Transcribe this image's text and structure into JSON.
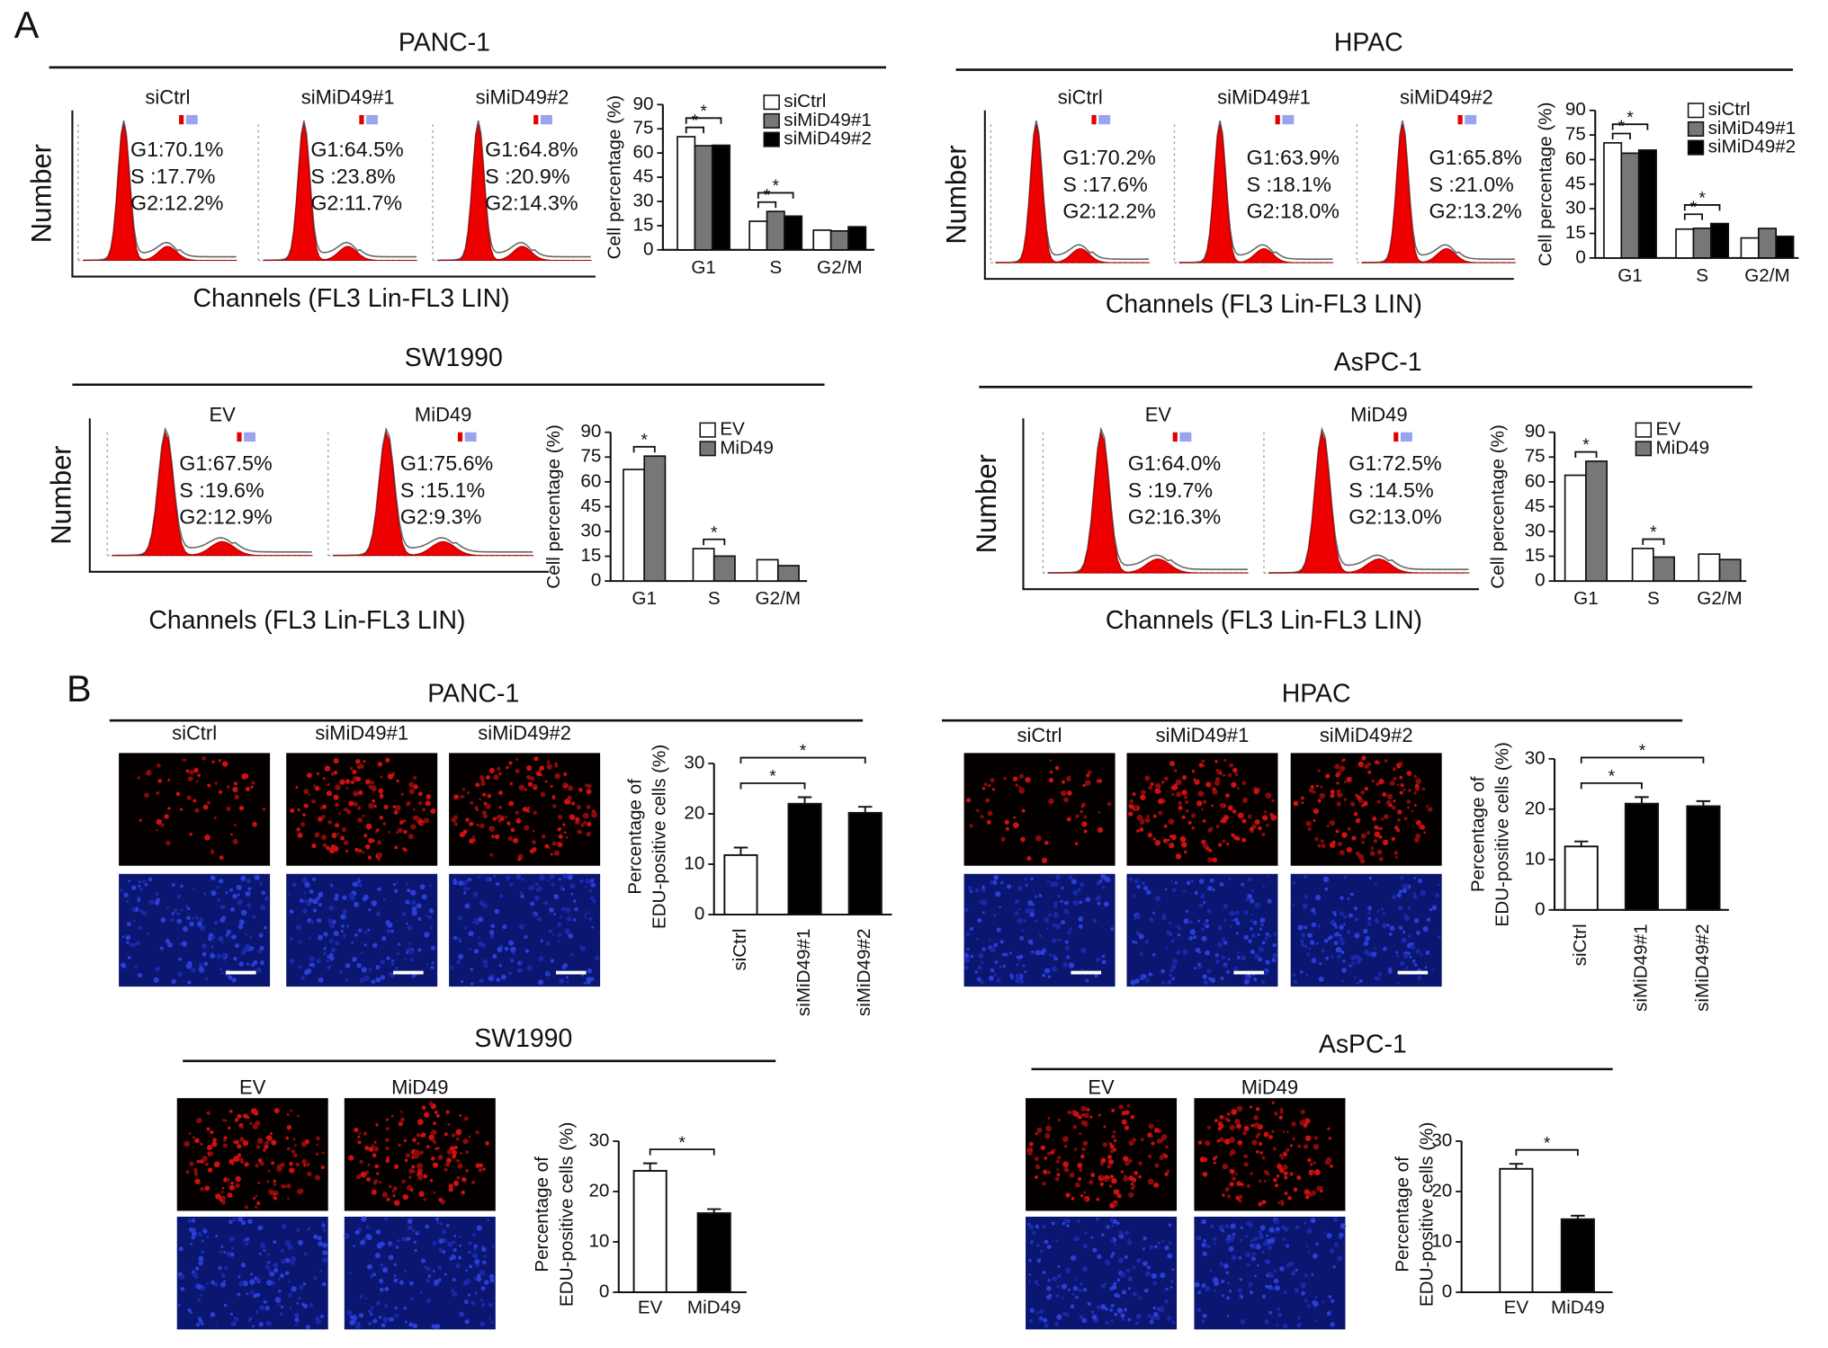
{
  "panel_labels": [
    "A",
    "B"
  ],
  "flow_panels": [
    {
      "title": "PANC-1",
      "y_label": "Number",
      "x_label": "Channels (FL3 Lin-FL3 LIN)",
      "samples": [
        {
          "name": "siCtrl",
          "stats": [
            "G1:70.1%",
            "S :17.7%",
            "G2:12.2%"
          ]
        },
        {
          "name": "siMiD49#1",
          "stats": [
            "G1:64.5%",
            "S :23.8%",
            "G2:11.7%"
          ]
        },
        {
          "name": "siMiD49#2",
          "stats": [
            "G1:64.8%",
            "S :20.9%",
            "G2:14.3%"
          ]
        }
      ]
    },
    {
      "title": "HPAC",
      "y_label": "Number",
      "x_label": "Channels (FL3 Lin-FL3 LIN)",
      "samples": [
        {
          "name": "siCtrl",
          "stats": [
            "G1:70.2%",
            "S :17.6%",
            "G2:12.2%"
          ]
        },
        {
          "name": "siMiD49#1",
          "stats": [
            "G1:63.9%",
            "S :18.1%",
            "G2:18.0%"
          ]
        },
        {
          "name": "siMiD49#2",
          "stats": [
            "G1:65.8%",
            "S :21.0%",
            "G2:13.2%"
          ]
        }
      ]
    },
    {
      "title": "SW1990",
      "y_label": "Number",
      "x_label": "Channels (FL3 Lin-FL3 LIN)",
      "samples": [
        {
          "name": "EV",
          "stats": [
            "G1:67.5%",
            "S :19.6%",
            "G2:12.9%"
          ]
        },
        {
          "name": "MiD49",
          "stats": [
            "G1:75.6%",
            "S :15.1%",
            "G2:9.3%"
          ]
        }
      ]
    },
    {
      "title": "AsPC-1",
      "y_label": "Number",
      "x_label": "Channels (FL3 Lin-FL3 LIN)",
      "samples": [
        {
          "name": "EV",
          "stats": [
            "G1:64.0%",
            "S :19.7%",
            "G2:16.3%"
          ]
        },
        {
          "name": "MiD49",
          "stats": [
            "G1:72.5%",
            "S :14.5%",
            "G2:13.0%"
          ]
        }
      ]
    }
  ],
  "edu_panels": [
    {
      "title": "PANC-1",
      "images": [
        "siCtrl",
        "siMiD49#1",
        "siMiD49#2"
      ]
    },
    {
      "title": "HPAC",
      "images": [
        "siCtrl",
        "siMiD49#1",
        "siMiD49#2"
      ]
    },
    {
      "title": "SW1990",
      "images": [
        "EV",
        "MiD49"
      ]
    },
    {
      "title": "AsPC-1",
      "images": [
        "EV",
        "MiD49"
      ]
    }
  ],
  "chart_data": [
    {
      "type": "bar",
      "ylabel": "Cell percentage (%)",
      "categories": [
        "G1",
        "S",
        "G2/M"
      ],
      "series": [
        {
          "name": "siCtrl",
          "color": "#ffffff",
          "values": [
            70.1,
            17.7,
            12.2
          ]
        },
        {
          "name": "siMiD49#1",
          "color": "#777777",
          "values": [
            64.5,
            23.8,
            11.7
          ]
        },
        {
          "name": "siMiD49#2",
          "color": "#000000",
          "values": [
            64.8,
            20.9,
            14.3
          ]
        }
      ],
      "ylim": [
        0,
        90
      ],
      "yticks": [
        0,
        15,
        30,
        45,
        60,
        75,
        90
      ],
      "annotations": [
        "*",
        "*",
        "*",
        "*"
      ]
    },
    {
      "type": "bar",
      "ylabel": "Cell percentage (%)",
      "categories": [
        "G1",
        "S",
        "G2/M"
      ],
      "series": [
        {
          "name": "siCtrl",
          "color": "#ffffff",
          "values": [
            70.2,
            17.6,
            12.2
          ]
        },
        {
          "name": "siMiD49#1",
          "color": "#777777",
          "values": [
            63.9,
            18.1,
            18.0
          ]
        },
        {
          "name": "siMiD49#2",
          "color": "#000000",
          "values": [
            65.8,
            21.0,
            13.2
          ]
        }
      ],
      "ylim": [
        0,
        90
      ],
      "yticks": [
        0,
        15,
        30,
        45,
        60,
        75,
        90
      ],
      "annotations": [
        "*",
        "*",
        "*",
        "*"
      ]
    },
    {
      "type": "bar",
      "ylabel": "Cell percentage (%)",
      "categories": [
        "G1",
        "S",
        "G2/M"
      ],
      "series": [
        {
          "name": "EV",
          "color": "#ffffff",
          "values": [
            67.5,
            19.6,
            12.9
          ]
        },
        {
          "name": "MiD49",
          "color": "#777777",
          "values": [
            75.6,
            15.1,
            9.3
          ]
        }
      ],
      "ylim": [
        0,
        90
      ],
      "yticks": [
        0,
        15,
        30,
        45,
        60,
        75,
        90
      ],
      "annotations": [
        "*",
        "*"
      ]
    },
    {
      "type": "bar",
      "ylabel": "Cell percentage (%)",
      "categories": [
        "G1",
        "S",
        "G2/M"
      ],
      "series": [
        {
          "name": "EV",
          "color": "#ffffff",
          "values": [
            64.0,
            19.7,
            16.3
          ]
        },
        {
          "name": "MiD49",
          "color": "#777777",
          "values": [
            72.5,
            14.5,
            13.0
          ]
        }
      ],
      "ylim": [
        0,
        90
      ],
      "yticks": [
        0,
        15,
        30,
        45,
        60,
        75,
        90
      ],
      "annotations": [
        "*",
        "*"
      ]
    },
    {
      "type": "bar",
      "ylabel": [
        "Percentage of",
        "EDU-positive cells (%)"
      ],
      "categories": [
        "siCtrl",
        "siMiD49#1",
        "siMiD49#2"
      ],
      "values": [
        11.8,
        22,
        20.2
      ],
      "errors": [
        1.5,
        1.3,
        1.2
      ],
      "colors": [
        "#ffffff",
        "#000000",
        "#000000"
      ],
      "ylim": [
        0,
        30
      ],
      "yticks": [
        0,
        10,
        20,
        30
      ],
      "annotations": [
        "*",
        "*"
      ]
    },
    {
      "type": "bar",
      "ylabel": [
        "Percentage of",
        "EDU-positive cells (%)"
      ],
      "categories": [
        "siCtrl",
        "siMiD49#1",
        "siMiD49#2"
      ],
      "values": [
        12.6,
        21.1,
        20.6
      ],
      "errors": [
        1,
        1.3,
        1
      ],
      "colors": [
        "#ffffff",
        "#000000",
        "#000000"
      ],
      "ylim": [
        0,
        30
      ],
      "yticks": [
        0,
        10,
        20,
        30
      ],
      "annotations": [
        "*",
        "*"
      ]
    },
    {
      "type": "bar",
      "ylabel": [
        "Percentage of",
        "EDU-positive cells (%)"
      ],
      "categories": [
        "EV",
        "MiD49"
      ],
      "values": [
        24.1,
        15.7
      ],
      "errors": [
        1.5,
        0.8
      ],
      "colors": [
        "#ffffff",
        "#000000"
      ],
      "ylim": [
        0,
        30
      ],
      "yticks": [
        0,
        10,
        20,
        30
      ],
      "annotations": [
        "*"
      ]
    },
    {
      "type": "bar",
      "ylabel": [
        "Percentage of",
        "EDU-positive cells (%)"
      ],
      "categories": [
        "EV",
        "MiD49"
      ],
      "values": [
        24.5,
        14.5
      ],
      "errors": [
        1,
        0.7
      ],
      "colors": [
        "#ffffff",
        "#000000"
      ],
      "ylim": [
        0,
        30
      ],
      "yticks": [
        0,
        10,
        20,
        30
      ],
      "annotations": [
        "*"
      ]
    }
  ]
}
